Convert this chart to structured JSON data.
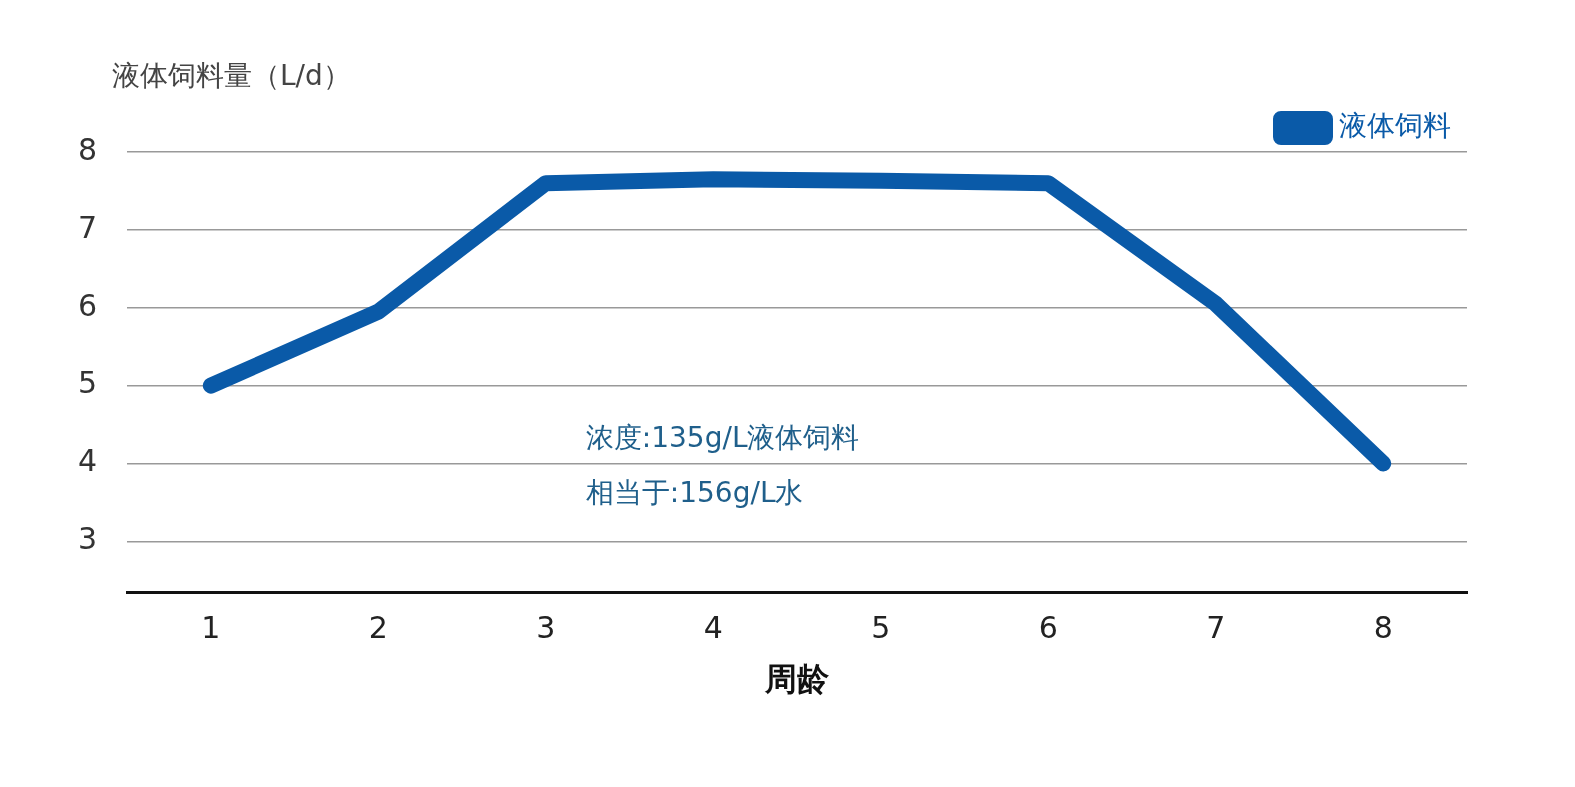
{
  "chart_data": {
    "type": "line",
    "ylabel": "液体饲料量（L/d）",
    "xlabel": "周龄",
    "categories": [
      "1",
      "2",
      "3",
      "4",
      "5",
      "6",
      "7",
      "8"
    ],
    "series": [
      {
        "name": "液体饲料",
        "color": "#0a5aa8",
        "values": [
          5,
          5.95,
          7.6,
          7.65,
          7.63,
          7.6,
          6.05,
          4
        ]
      }
    ],
    "ylim": [
      2.35,
      8
    ],
    "yticks": [
      3,
      4,
      5,
      6,
      7,
      8
    ],
    "grid": "y",
    "legend": "top right",
    "marker": "none",
    "line_style": "solid",
    "annotations": [
      "浓度:135g/L液体饲料",
      "相当于:156g/L水"
    ]
  }
}
